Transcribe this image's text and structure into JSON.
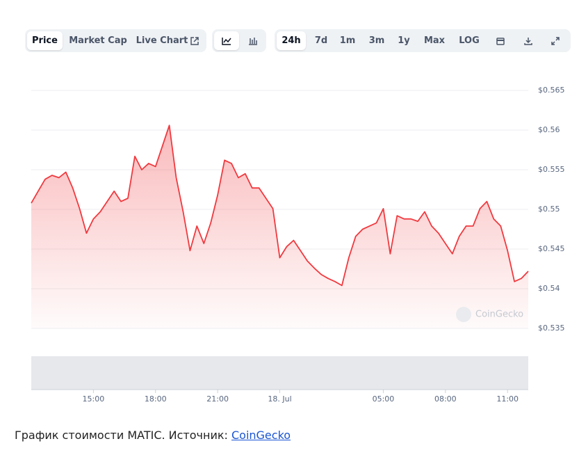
{
  "toolbar": {
    "view_tabs": [
      "Price",
      "Market Cap",
      "Live Chart"
    ],
    "range_tabs": [
      "24h",
      "7d",
      "1m",
      "3m",
      "1y",
      "Max",
      "LOG"
    ]
  },
  "chart_data": {
    "type": "line",
    "series": [
      {
        "name": "MATIC",
        "color": "#f0393e",
        "values": [
          0.5508,
          0.5523,
          0.5538,
          0.5543,
          0.554,
          0.5547,
          0.5527,
          0.5501,
          0.547,
          0.5488,
          0.5497,
          0.551,
          0.5523,
          0.551,
          0.5514,
          0.5567,
          0.555,
          0.5558,
          0.5554,
          0.558,
          0.5606,
          0.554,
          0.5497,
          0.5448,
          0.5479,
          0.5457,
          0.5483,
          0.5518,
          0.5562,
          0.5558,
          0.554,
          0.5545,
          0.5527,
          0.5527,
          0.5514,
          0.5501,
          0.5439,
          0.5453,
          0.5461,
          0.5448,
          0.5435,
          0.5426,
          0.5418,
          0.5413,
          0.5409,
          0.5404,
          0.5439,
          0.5466,
          0.5475,
          0.5479,
          0.5483,
          0.5501,
          0.5444,
          0.5492,
          0.5488,
          0.5488,
          0.5485,
          0.5497,
          0.5479,
          0.547,
          0.5457,
          0.5444,
          0.5466,
          0.5479,
          0.5479,
          0.5501,
          0.551,
          0.5488,
          0.5479,
          0.5448,
          0.5409,
          0.5413,
          0.5422
        ]
      }
    ],
    "xlim": [
      0,
      72
    ],
    "xticks": [
      {
        "value": 9,
        "label": "15:00"
      },
      {
        "value": 18,
        "label": "18:00"
      },
      {
        "value": 27,
        "label": "21:00"
      },
      {
        "value": 36,
        "label": "18. Jul"
      },
      {
        "value": 51,
        "label": "05:00"
      },
      {
        "value": 60,
        "label": "08:00"
      },
      {
        "value": 69,
        "label": "11:00"
      }
    ],
    "ylim": [
      0.535,
      0.565
    ],
    "yticks": [
      {
        "value": 0.535,
        "label": "$0.535"
      },
      {
        "value": 0.54,
        "label": "$0.54"
      },
      {
        "value": 0.545,
        "label": "$0.545"
      },
      {
        "value": 0.55,
        "label": "$0.55"
      },
      {
        "value": 0.555,
        "label": "$0.555"
      },
      {
        "value": 0.56,
        "label": "$0.56"
      },
      {
        "value": 0.565,
        "label": "$0.565"
      }
    ],
    "grid": true,
    "watermark": "CoinGecko"
  },
  "caption": {
    "text": "График стоимости MATIC. Источник: ",
    "link": "CoinGecko"
  }
}
